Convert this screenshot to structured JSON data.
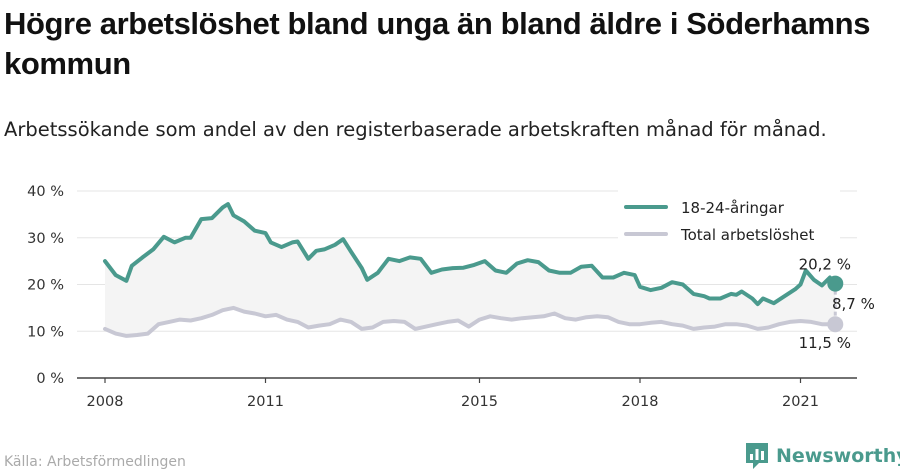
{
  "title": "Högre arbetslöshet bland unga än bland äldre i Söderhamns kommun",
  "subtitle": "Arbetssökande som andel av den registerbaserade arbetskraften månad för månad.",
  "source": "Källa: Arbetsförmedlingen",
  "brand": "Newsworthy",
  "colors": {
    "youth": "#4a9a8d",
    "total": "#c8c8d4",
    "band": "#f4f4f4"
  },
  "annotations": {
    "youth_last": "20,2 %",
    "total_last": "11,5 %",
    "gap": "8,7 %"
  },
  "chart_data": {
    "type": "line",
    "title": "Högre arbetslöshet bland unga än bland äldre i Söderhamns kommun",
    "ylim": [
      0,
      40
    ],
    "yticks": [
      0,
      10,
      20,
      30,
      40
    ],
    "ytick_labels": [
      "0 %",
      "10 %",
      "20 %",
      "30 %",
      "40 %"
    ],
    "xlim": [
      2008,
      2021.8
    ],
    "xticks": [
      2008,
      2011,
      2015,
      2018,
      2021
    ],
    "xtick_labels": [
      "2008",
      "2011",
      "2015",
      "2018",
      "2021"
    ],
    "grid": true,
    "legend_position": "top-right",
    "series": [
      {
        "name": "18-24-åringar",
        "points": [
          [
            2008.0,
            25.0
          ],
          [
            2008.2,
            22.0
          ],
          [
            2008.4,
            20.8
          ],
          [
            2008.5,
            24.0
          ],
          [
            2008.7,
            25.8
          ],
          [
            2008.9,
            27.5
          ],
          [
            2009.1,
            30.2
          ],
          [
            2009.3,
            29.0
          ],
          [
            2009.5,
            30.0
          ],
          [
            2009.6,
            30.0
          ],
          [
            2009.8,
            34.0
          ],
          [
            2010.0,
            34.2
          ],
          [
            2010.2,
            36.5
          ],
          [
            2010.3,
            37.2
          ],
          [
            2010.4,
            34.8
          ],
          [
            2010.6,
            33.5
          ],
          [
            2010.8,
            31.5
          ],
          [
            2011.0,
            31.0
          ],
          [
            2011.1,
            29.0
          ],
          [
            2011.3,
            28.0
          ],
          [
            2011.5,
            29.0
          ],
          [
            2011.6,
            29.2
          ],
          [
            2011.8,
            25.5
          ],
          [
            2011.95,
            27.2
          ],
          [
            2012.1,
            27.5
          ],
          [
            2012.3,
            28.5
          ],
          [
            2012.45,
            29.7
          ],
          [
            2012.6,
            27.0
          ],
          [
            2012.8,
            23.5
          ],
          [
            2012.9,
            21.0
          ],
          [
            2013.1,
            22.5
          ],
          [
            2013.3,
            25.5
          ],
          [
            2013.5,
            25.0
          ],
          [
            2013.7,
            25.8
          ],
          [
            2013.9,
            25.5
          ],
          [
            2014.1,
            22.5
          ],
          [
            2014.3,
            23.2
          ],
          [
            2014.5,
            23.5
          ],
          [
            2014.7,
            23.6
          ],
          [
            2014.9,
            24.2
          ],
          [
            2015.1,
            25.0
          ],
          [
            2015.3,
            23.0
          ],
          [
            2015.5,
            22.5
          ],
          [
            2015.7,
            24.5
          ],
          [
            2015.9,
            25.2
          ],
          [
            2016.1,
            24.8
          ],
          [
            2016.3,
            23.0
          ],
          [
            2016.5,
            22.5
          ],
          [
            2016.7,
            22.5
          ],
          [
            2016.9,
            23.8
          ],
          [
            2017.1,
            24.0
          ],
          [
            2017.3,
            21.5
          ],
          [
            2017.5,
            21.5
          ],
          [
            2017.7,
            22.5
          ],
          [
            2017.9,
            22.0
          ],
          [
            2018.0,
            19.5
          ],
          [
            2018.2,
            18.8
          ],
          [
            2018.4,
            19.3
          ],
          [
            2018.6,
            20.5
          ],
          [
            2018.8,
            20.0
          ],
          [
            2019.0,
            18.0
          ],
          [
            2019.2,
            17.5
          ],
          [
            2019.3,
            17.0
          ],
          [
            2019.5,
            17.0
          ],
          [
            2019.7,
            18.0
          ],
          [
            2019.8,
            17.8
          ],
          [
            2019.9,
            18.5
          ],
          [
            2020.1,
            17.0
          ],
          [
            2020.2,
            15.8
          ],
          [
            2020.3,
            17.0
          ],
          [
            2020.5,
            16.0
          ],
          [
            2020.7,
            17.5
          ],
          [
            2020.9,
            19.0
          ],
          [
            2021.0,
            20.0
          ],
          [
            2021.1,
            23.0
          ],
          [
            2021.25,
            21.0
          ],
          [
            2021.4,
            19.8
          ],
          [
            2021.55,
            21.5
          ],
          [
            2021.65,
            20.2
          ]
        ]
      },
      {
        "name": "Total arbetslöshet",
        "points": [
          [
            2008.0,
            10.5
          ],
          [
            2008.2,
            9.5
          ],
          [
            2008.4,
            9.0
          ],
          [
            2008.6,
            9.2
          ],
          [
            2008.8,
            9.5
          ],
          [
            2009.0,
            11.5
          ],
          [
            2009.2,
            12.0
          ],
          [
            2009.4,
            12.5
          ],
          [
            2009.6,
            12.3
          ],
          [
            2009.8,
            12.8
          ],
          [
            2010.0,
            13.5
          ],
          [
            2010.2,
            14.5
          ],
          [
            2010.4,
            15.0
          ],
          [
            2010.6,
            14.2
          ],
          [
            2010.8,
            13.8
          ],
          [
            2011.0,
            13.2
          ],
          [
            2011.2,
            13.5
          ],
          [
            2011.4,
            12.5
          ],
          [
            2011.6,
            12.0
          ],
          [
            2011.8,
            10.8
          ],
          [
            2012.0,
            11.2
          ],
          [
            2012.2,
            11.5
          ],
          [
            2012.4,
            12.5
          ],
          [
            2012.6,
            12.0
          ],
          [
            2012.8,
            10.5
          ],
          [
            2013.0,
            10.8
          ],
          [
            2013.2,
            12.0
          ],
          [
            2013.4,
            12.2
          ],
          [
            2013.6,
            12.0
          ],
          [
            2013.8,
            10.5
          ],
          [
            2014.0,
            11.0
          ],
          [
            2014.2,
            11.5
          ],
          [
            2014.4,
            12.0
          ],
          [
            2014.6,
            12.3
          ],
          [
            2014.8,
            11.0
          ],
          [
            2015.0,
            12.5
          ],
          [
            2015.2,
            13.2
          ],
          [
            2015.4,
            12.8
          ],
          [
            2015.6,
            12.5
          ],
          [
            2015.8,
            12.8
          ],
          [
            2016.0,
            13.0
          ],
          [
            2016.2,
            13.2
          ],
          [
            2016.4,
            13.8
          ],
          [
            2016.6,
            12.8
          ],
          [
            2016.8,
            12.5
          ],
          [
            2017.0,
            13.0
          ],
          [
            2017.2,
            13.2
          ],
          [
            2017.4,
            13.0
          ],
          [
            2017.6,
            12.0
          ],
          [
            2017.8,
            11.5
          ],
          [
            2018.0,
            11.5
          ],
          [
            2018.2,
            11.8
          ],
          [
            2018.4,
            12.0
          ],
          [
            2018.6,
            11.5
          ],
          [
            2018.8,
            11.2
          ],
          [
            2019.0,
            10.5
          ],
          [
            2019.2,
            10.8
          ],
          [
            2019.4,
            11.0
          ],
          [
            2019.6,
            11.5
          ],
          [
            2019.8,
            11.5
          ],
          [
            2020.0,
            11.2
          ],
          [
            2020.2,
            10.5
          ],
          [
            2020.4,
            10.8
          ],
          [
            2020.6,
            11.5
          ],
          [
            2020.8,
            12.0
          ],
          [
            2021.0,
            12.2
          ],
          [
            2021.2,
            12.0
          ],
          [
            2021.4,
            11.5
          ],
          [
            2021.65,
            11.5
          ]
        ]
      }
    ]
  }
}
